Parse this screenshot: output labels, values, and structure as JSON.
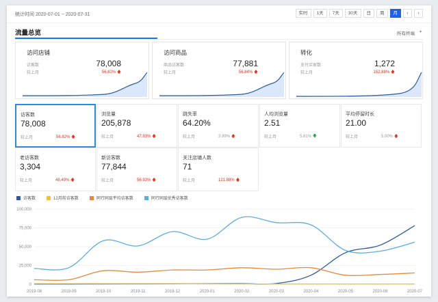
{
  "header": {
    "date_range": "统计时间 2020-07-01 ~ 2020-07-31",
    "buttons": [
      "实时",
      "1天",
      "7天",
      "30天",
      "日",
      "周",
      "月"
    ],
    "active_button": "月",
    "prev": "‹",
    "next": "›"
  },
  "section": {
    "title": "流量总览",
    "channel": "所有终端",
    "caret": "▾"
  },
  "cards": [
    {
      "title": "访问店铺",
      "label": "访客数",
      "value": "78,008",
      "cmp": "较上月",
      "pct": "56.82%"
    },
    {
      "title": "访问商品",
      "label": "商品访客数",
      "value": "77,881",
      "cmp": "较上月",
      "pct": "56.84%"
    },
    {
      "title": "转化",
      "label": "支付买家数",
      "value": "1,272",
      "cmp": "较上月",
      "pct": "152.88%"
    }
  ],
  "metrics": [
    {
      "label": "访客数",
      "value": "78,008",
      "cmp": "较上月",
      "pct": "56.82%",
      "dir": "up"
    },
    {
      "label": "浏览量",
      "value": "205,878",
      "cmp": "较上月",
      "pct": "47.83%",
      "dir": "up"
    },
    {
      "label": "跳失率",
      "value": "64.20%",
      "cmp": "较上月",
      "pct": "3.99%",
      "dir": "up"
    },
    {
      "label": "人均浏览量",
      "value": "2.51",
      "cmp": "较上月",
      "pct": "5.61%",
      "dir": "down"
    },
    {
      "label": "平均停留时长",
      "value": "21.00",
      "cmp": "较上月",
      "pct": "5.00%",
      "dir": "up"
    },
    {
      "label": "老访客数",
      "value": "3,304",
      "cmp": "较上月",
      "pct": "48.49%",
      "dir": "up"
    },
    {
      "label": "新访客数",
      "value": "77,844",
      "cmp": "较上月",
      "pct": "56.93%",
      "dir": "up"
    },
    {
      "label": "关注店铺人数",
      "value": "71",
      "cmp": "较上月",
      "pct": "121.88%",
      "dir": "up"
    }
  ],
  "colors": {
    "accent": "#1a73e8",
    "up": "#e0301e",
    "down": "#2ca34c"
  },
  "chart_data": {
    "type": "line",
    "categories": [
      "2019-08",
      "2019-09",
      "2019-10",
      "2019-11",
      "2019-12",
      "2020-01",
      "2020-02",
      "2020-03",
      "2020-04",
      "2020-05",
      "2020-06",
      "2020-07"
    ],
    "ylim": [
      0,
      100000
    ],
    "yticks": [
      "100,000",
      "75,000",
      "50,000",
      "25,000",
      "0"
    ],
    "ytick_values": [
      100000,
      75000,
      50000,
      25000,
      0
    ],
    "grid": true,
    "legend": "top-left",
    "series": [
      {
        "name": "访客数",
        "color": "#2c5aa0",
        "values": [
          200,
          300,
          400,
          500,
          600,
          800,
          900,
          1000,
          12000,
          42000,
          52000,
          78000
        ]
      },
      {
        "name": "12月前访客数",
        "color": "#f1c232",
        "values": [
          800,
          800,
          800,
          800,
          800,
          500,
          400,
          300,
          300,
          300,
          300,
          300
        ]
      },
      {
        "name": "同行同层平均访客数",
        "color": "#e8883a",
        "values": [
          6000,
          6000,
          18000,
          16000,
          19000,
          19000,
          22000,
          20000,
          22000,
          12000,
          13000,
          15000
        ]
      },
      {
        "name": "同行同层优秀访客数",
        "color": "#5aaee0",
        "values": [
          21000,
          22000,
          58000,
          51000,
          70000,
          60000,
          89000,
          82000,
          79000,
          45000,
          44000,
          56000
        ]
      }
    ]
  }
}
